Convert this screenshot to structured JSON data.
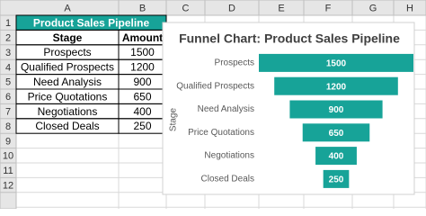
{
  "sheet": {
    "column_headers": [
      "A",
      "B",
      "C",
      "D",
      "E",
      "F",
      "G",
      "H"
    ],
    "row_headers": [
      1,
      2,
      3,
      4,
      5,
      6,
      7,
      8,
      9,
      10,
      11,
      12
    ],
    "table": {
      "title": "Product Sales Pipeline",
      "headers": [
        "Stage",
        "Amount"
      ],
      "rows": [
        [
          "Prospects",
          1500
        ],
        [
          "Qualified Prospects",
          1200
        ],
        [
          "Need Analysis",
          900
        ],
        [
          "Price Quotations",
          650
        ],
        [
          "Negotiations",
          400
        ],
        [
          "Closed Deals",
          250
        ]
      ]
    }
  },
  "chart_data": {
    "type": "funnel",
    "title": "Funnel Chart: Product Sales Pipeline",
    "y_label": "Stage",
    "categories": [
      "Prospects",
      "Qualified Prospects",
      "Need Analysis",
      "Price Quotations",
      "Negotiations",
      "Closed Deals"
    ],
    "values": [
      1500,
      1200,
      900,
      650,
      400,
      250
    ],
    "color": "#17a398"
  }
}
